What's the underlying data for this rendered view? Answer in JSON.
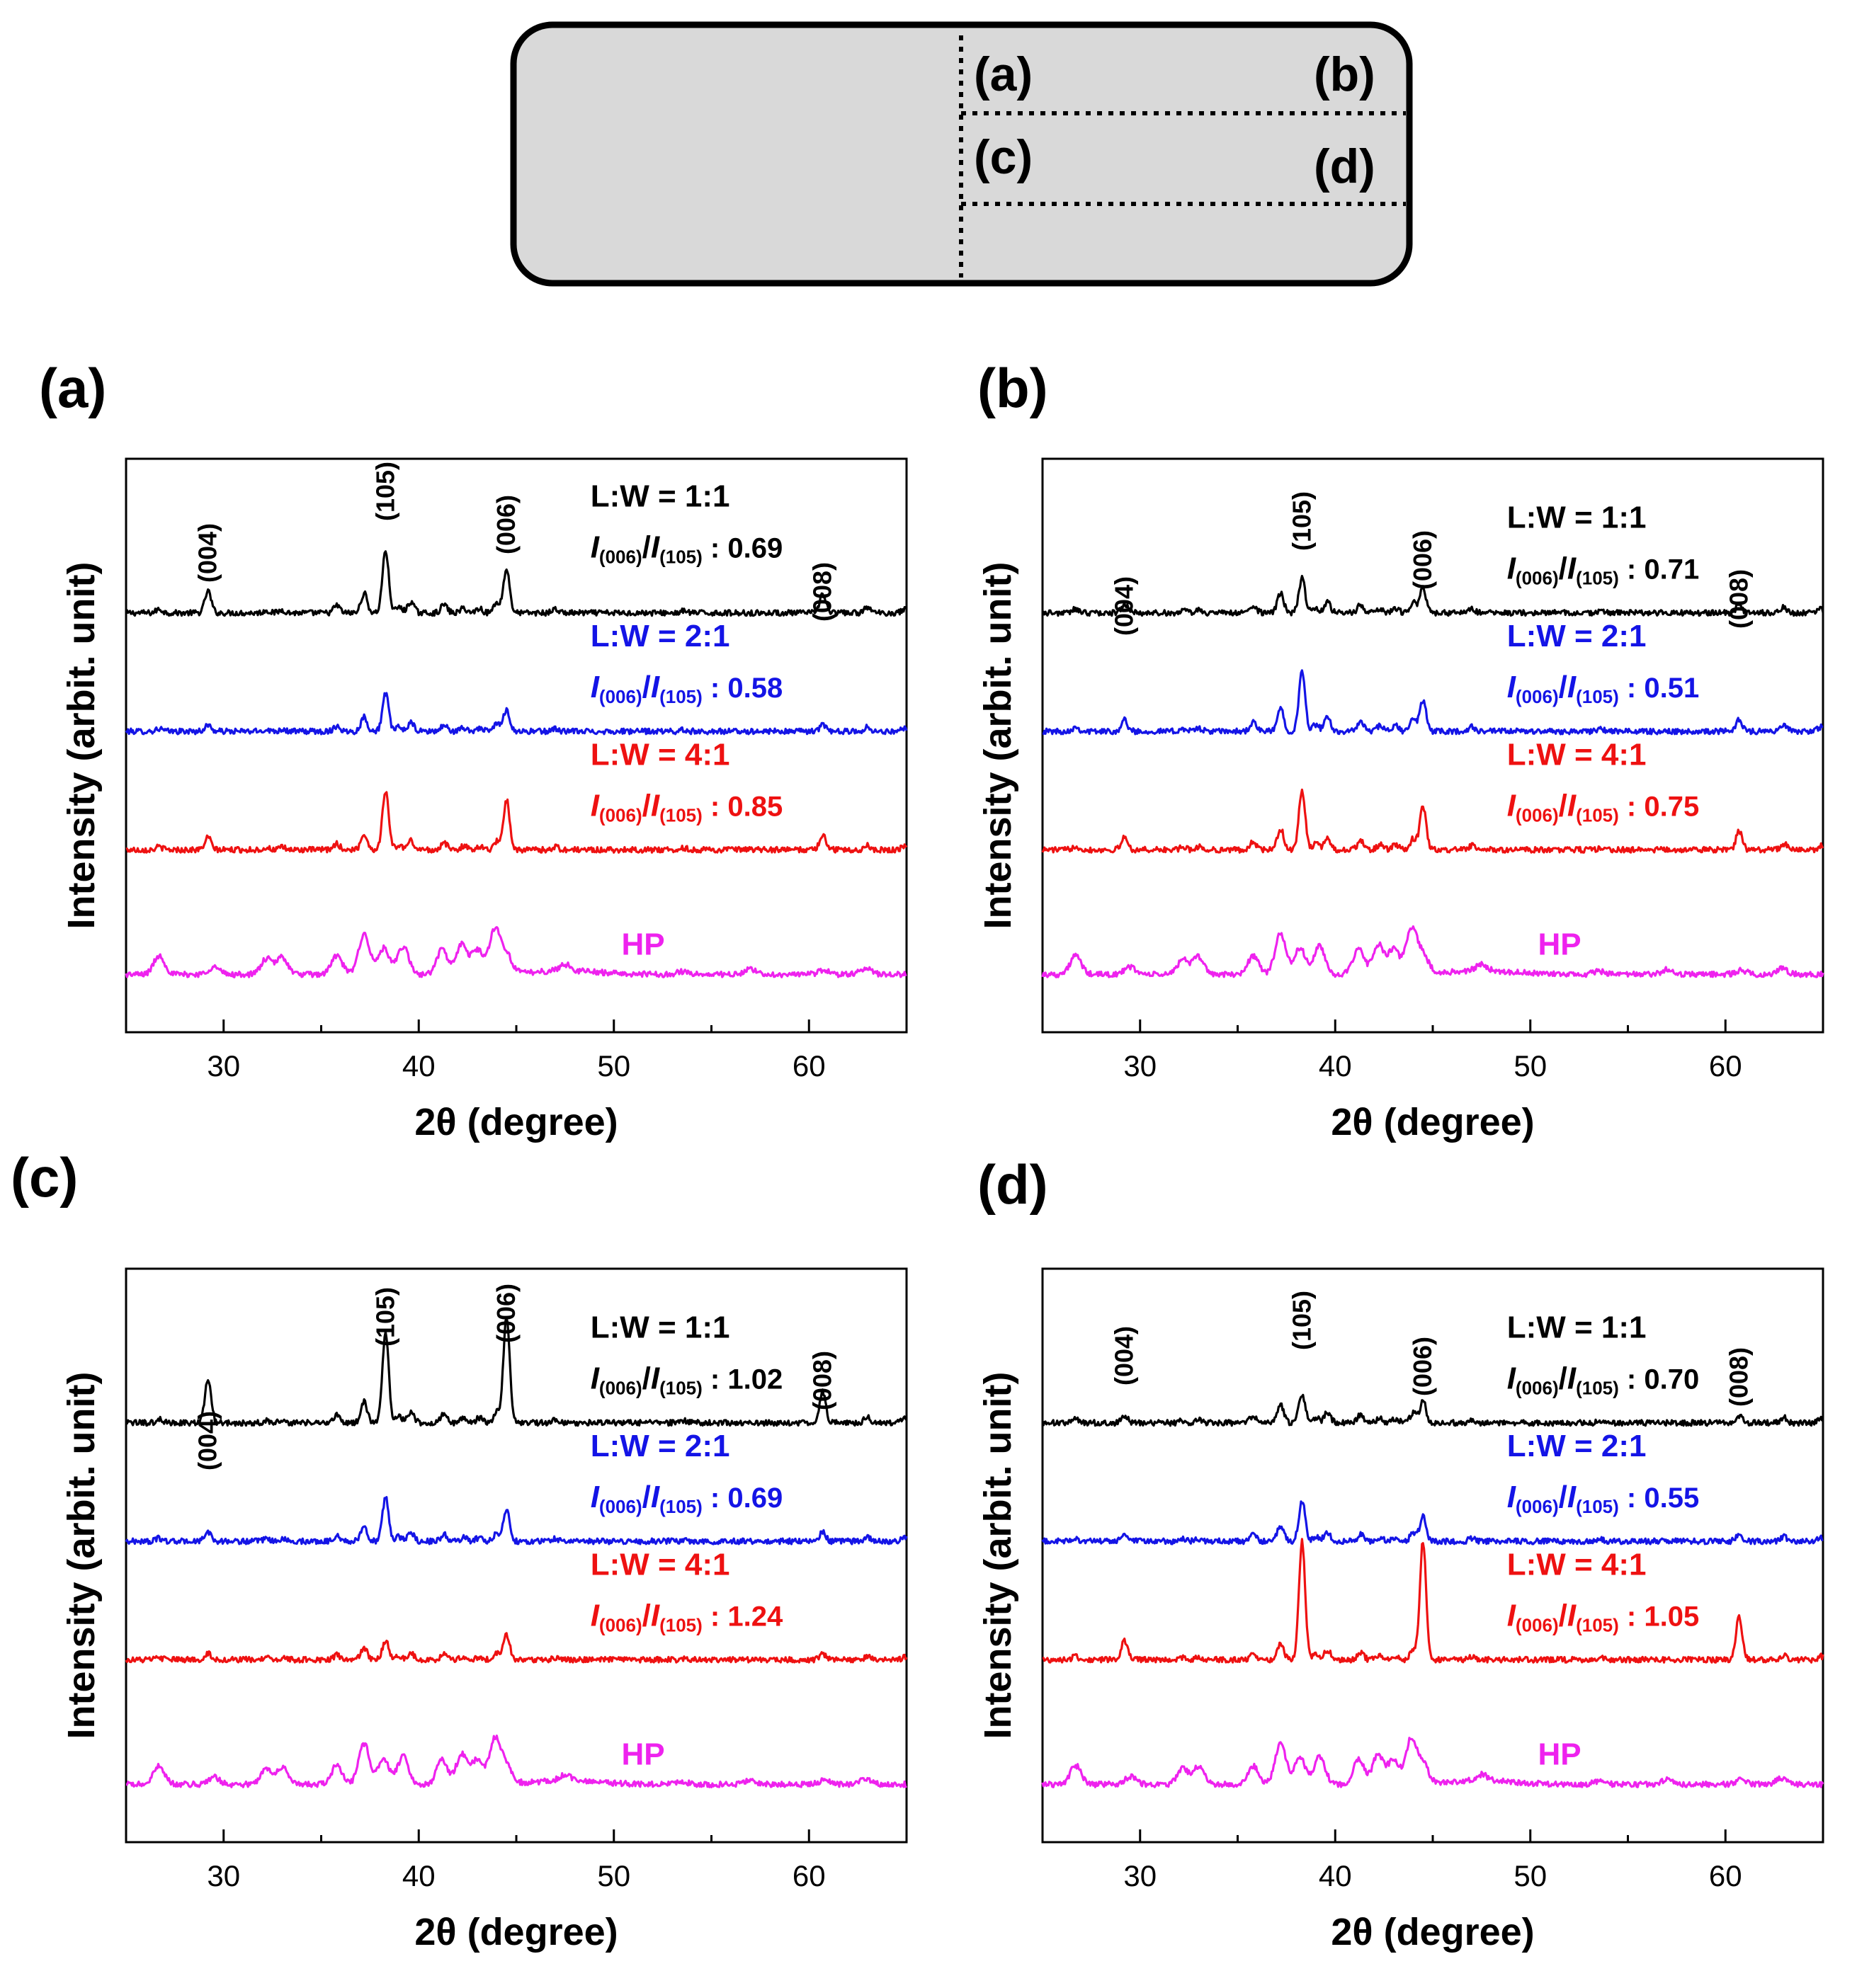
{
  "diagram": {
    "regions": [
      "(a)",
      "(b)",
      "(c)",
      "(d)"
    ]
  },
  "colors": {
    "black": "#000000",
    "blue": "#1414e6",
    "red": "#ee1111",
    "magenta": "#ee22ee",
    "diagram_fill": "#d9d9d9"
  },
  "peaks": {
    "labels": [
      "(004)",
      "(105)",
      "(006)",
      "(008)"
    ],
    "positions": [
      29.2,
      38.3,
      44.5,
      60.7
    ]
  },
  "chart_data": [
    {
      "panel": "(a)",
      "type": "line",
      "xlabel": "2θ (degree)",
      "ylabel": "Intensity (arbit. unit)",
      "xlim": [
        25,
        65
      ],
      "xticks": [
        30,
        40,
        50,
        60
      ],
      "peak_labels": [
        "(004)",
        "(105)",
        "(006)",
        "(008)"
      ],
      "series": [
        {
          "name": "L:W = 1:1",
          "ratio_prefix": "I(006)/I(105)",
          "ratio": "0.69",
          "color": "black",
          "offset": 3,
          "peak_heights": [
            0.35,
            1.0,
            0.7,
            0.3
          ],
          "minor_scale": 0.75
        },
        {
          "name": "L:W = 2:1",
          "ratio_prefix": "I(006)/I(105)",
          "ratio": "0.58",
          "color": "blue",
          "offset": 2,
          "peak_heights": [
            0.1,
            0.6,
            0.35,
            0.1
          ],
          "minor_scale": 0.55
        },
        {
          "name": "L:W = 4:1",
          "ratio_prefix": "I(006)/I(105)",
          "ratio": "0.85",
          "color": "red",
          "offset": 1,
          "peak_heights": [
            0.2,
            0.95,
            0.8,
            0.25
          ],
          "minor_scale": 0.6
        },
        {
          "name": "HP",
          "color": "magenta",
          "offset": 0,
          "hp": true
        }
      ]
    },
    {
      "panel": "(b)",
      "type": "line",
      "xlabel": "2θ (degree)",
      "ylabel": "Intensity (arbit. unit)",
      "xlim": [
        25,
        65
      ],
      "xticks": [
        30,
        40,
        50,
        60
      ],
      "peak_labels": [
        "(004)",
        "(105)",
        "(006)",
        "(008)"
      ],
      "series": [
        {
          "name": "L:W = 1:1",
          "ratio_prefix": "I(006)/I(105)",
          "ratio": "0.71",
          "color": "black",
          "offset": 3,
          "peak_heights": [
            0.15,
            0.55,
            0.4,
            0.12
          ],
          "minor_scale": 0.75
        },
        {
          "name": "L:W = 2:1",
          "ratio_prefix": "I(006)/I(105)",
          "ratio": "0.51",
          "color": "blue",
          "offset": 2,
          "peak_heights": [
            0.18,
            0.95,
            0.5,
            0.2
          ],
          "minor_scale": 0.9
        },
        {
          "name": "L:W = 4:1",
          "ratio_prefix": "I(006)/I(105)",
          "ratio": "0.75",
          "color": "red",
          "offset": 1,
          "peak_heights": [
            0.2,
            0.95,
            0.7,
            0.3
          ],
          "minor_scale": 0.8
        },
        {
          "name": "HP",
          "color": "magenta",
          "offset": 0,
          "hp": true
        }
      ]
    },
    {
      "panel": "(c)",
      "type": "line",
      "xlabel": "2θ (degree)",
      "ylabel": "Intensity (arbit. unit)",
      "xlim": [
        25,
        65
      ],
      "xticks": [
        30,
        40,
        50,
        60
      ],
      "peak_labels": [
        "(004)",
        "(105)",
        "(006)",
        "(008)"
      ],
      "series": [
        {
          "name": "L:W = 1:1",
          "ratio_prefix": "I(006)/I(105)",
          "ratio": "1.02",
          "color": "black",
          "offset": 3,
          "peak_heights": [
            0.7,
            1.45,
            1.7,
            0.5
          ],
          "minor_scale": 0.8
        },
        {
          "name": "L:W = 2:1",
          "ratio_prefix": "I(006)/I(105)",
          "ratio": "0.69",
          "color": "blue",
          "offset": 2,
          "peak_heights": [
            0.15,
            0.7,
            0.5,
            0.15
          ],
          "minor_scale": 0.6
        },
        {
          "name": "L:W = 4:1",
          "ratio_prefix": "I(006)/I(105)",
          "ratio": "1.24",
          "color": "red",
          "offset": 1,
          "peak_heights": [
            0.1,
            0.3,
            0.4,
            0.1
          ],
          "minor_scale": 0.45
        },
        {
          "name": "HP",
          "color": "magenta",
          "offset": 0,
          "hp": true
        }
      ]
    },
    {
      "panel": "(d)",
      "type": "line",
      "xlabel": "2θ (degree)",
      "ylabel": "Intensity (arbit. unit)",
      "xlim": [
        25,
        65
      ],
      "xticks": [
        30,
        40,
        50,
        60
      ],
      "peak_labels": [
        "(004)",
        "(105)",
        "(006)",
        "(008)"
      ],
      "series": [
        {
          "name": "L:W = 1:1",
          "ratio_prefix": "I(006)/I(105)",
          "ratio": "0.70",
          "color": "black",
          "offset": 3,
          "peak_heights": [
            0.12,
            0.45,
            0.35,
            0.12
          ],
          "minor_scale": 0.7
        },
        {
          "name": "L:W = 2:1",
          "ratio_prefix": "I(006)/I(105)",
          "ratio": "0.55",
          "color": "blue",
          "offset": 2,
          "peak_heights": [
            0.12,
            0.65,
            0.4,
            0.12
          ],
          "minor_scale": 0.6
        },
        {
          "name": "L:W = 4:1",
          "ratio_prefix": "I(006)/I(105)",
          "ratio": "1.05",
          "color": "red",
          "offset": 1,
          "peak_heights": [
            0.3,
            1.9,
            1.9,
            0.7
          ],
          "minor_scale": 0.65
        },
        {
          "name": "HP",
          "color": "magenta",
          "offset": 0,
          "hp": true
        }
      ]
    }
  ]
}
